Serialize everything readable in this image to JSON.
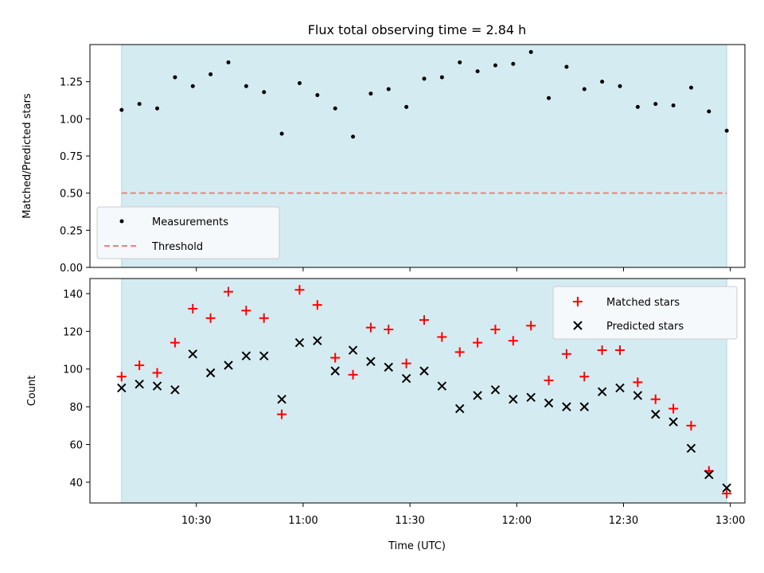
{
  "chart_data": [
    {
      "type": "scatter",
      "title": "Flux total observing time = 2.84 h",
      "xlabel": "",
      "ylabel": "Matched/Predicted stars",
      "ylim": [
        0,
        1.5
      ],
      "yticks": [
        "0.00",
        "0.25",
        "0.50",
        "0.75",
        "1.00",
        "1.25"
      ],
      "legend_position": "lower-left",
      "observing_window": [
        "10:09",
        "12:59"
      ],
      "threshold": {
        "name": "Threshold",
        "value": 0.5,
        "color": "#f08080",
        "style": "dashed"
      },
      "series": [
        {
          "name": "Measurements",
          "marker": "dot",
          "color": "#000000",
          "x": [
            "10:09",
            "10:14",
            "10:19",
            "10:24",
            "10:29",
            "10:34",
            "10:39",
            "10:44",
            "10:49",
            "10:54",
            "10:59",
            "11:04",
            "11:09",
            "11:14",
            "11:19",
            "11:24",
            "11:29",
            "11:34",
            "11:39",
            "11:44",
            "11:49",
            "11:54",
            "11:59",
            "12:04",
            "12:09",
            "12:14",
            "12:19",
            "12:24",
            "12:29",
            "12:34",
            "12:39",
            "12:44",
            "12:49",
            "12:54",
            "12:59"
          ],
          "values": [
            1.06,
            1.1,
            1.07,
            1.28,
            1.22,
            1.3,
            1.38,
            1.22,
            1.18,
            0.9,
            1.24,
            1.16,
            1.07,
            0.88,
            1.17,
            1.2,
            1.08,
            1.27,
            1.28,
            1.38,
            1.32,
            1.36,
            1.37,
            1.45,
            1.14,
            1.35,
            1.2,
            1.25,
            1.22,
            1.08,
            1.1,
            1.09,
            1.21,
            1.05,
            0.92
          ]
        }
      ]
    },
    {
      "type": "scatter",
      "title": "",
      "xlabel": "Time (UTC)",
      "ylabel": "Count",
      "ylim": [
        29,
        148
      ],
      "yticks": [
        "40",
        "60",
        "80",
        "100",
        "120",
        "140"
      ],
      "xticks": [
        "10:30",
        "11:00",
        "11:30",
        "12:00",
        "12:30",
        "13:00"
      ],
      "legend_position": "top-right",
      "observing_window": [
        "10:09",
        "12:59"
      ],
      "series": [
        {
          "name": "Matched stars",
          "marker": "plus",
          "color": "#ff0000",
          "x": [
            "10:09",
            "10:14",
            "10:19",
            "10:24",
            "10:29",
            "10:34",
            "10:39",
            "10:44",
            "10:49",
            "10:54",
            "10:59",
            "11:04",
            "11:09",
            "11:14",
            "11:19",
            "11:24",
            "11:29",
            "11:34",
            "11:39",
            "11:44",
            "11:49",
            "11:54",
            "11:59",
            "12:04",
            "12:09",
            "12:14",
            "12:19",
            "12:24",
            "12:29",
            "12:34",
            "12:39",
            "12:44",
            "12:49",
            "12:54",
            "12:59"
          ],
          "values": [
            96,
            102,
            98,
            114,
            132,
            127,
            141,
            131,
            127,
            76,
            142,
            134,
            106,
            97,
            122,
            121,
            103,
            126,
            117,
            109,
            114,
            121,
            115,
            123,
            94,
            108,
            96,
            110,
            110,
            93,
            84,
            79,
            70,
            46,
            34
          ]
        },
        {
          "name": "Predicted stars",
          "marker": "x",
          "color": "#000000",
          "x": [
            "10:09",
            "10:14",
            "10:19",
            "10:24",
            "10:29",
            "10:34",
            "10:39",
            "10:44",
            "10:49",
            "10:54",
            "10:59",
            "11:04",
            "11:09",
            "11:14",
            "11:19",
            "11:24",
            "11:29",
            "11:34",
            "11:39",
            "11:44",
            "11:49",
            "11:54",
            "11:59",
            "12:04",
            "12:09",
            "12:14",
            "12:19",
            "12:24",
            "12:29",
            "12:34",
            "12:39",
            "12:44",
            "12:49",
            "12:54",
            "12:59"
          ],
          "values": [
            90,
            92,
            91,
            89,
            108,
            98,
            102,
            107,
            107,
            84,
            114,
            115,
            99,
            110,
            104,
            101,
            95,
            99,
            91,
            79,
            86,
            89,
            84,
            85,
            82,
            80,
            80,
            88,
            90,
            86,
            76,
            72,
            58,
            44,
            37
          ]
        }
      ]
    }
  ],
  "colors": {
    "observing_window_fill": "#d4ebf1",
    "observing_window_edge": "#add8e6",
    "legend_bg": "#f5f9fc"
  }
}
